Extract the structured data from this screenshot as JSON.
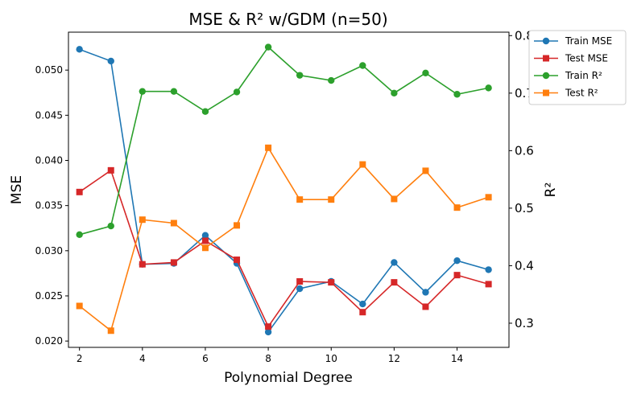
{
  "chart_data": {
    "type": "line",
    "title": "MSE & R² w/GDM (n=50)",
    "xlabel": "Polynomial Degree",
    "ylabel": "MSE",
    "ylabel_right": "R²",
    "x": [
      2,
      3,
      4,
      5,
      6,
      7,
      8,
      9,
      10,
      11,
      12,
      13,
      14,
      15
    ],
    "xlim": [
      1.65,
      15.65
    ],
    "ylim": [
      0.0193,
      0.0542
    ],
    "ylim_right": [
      0.258,
      0.806
    ],
    "x_ticks": [
      2,
      4,
      6,
      8,
      10,
      12,
      14
    ],
    "y_ticks": [
      0.02,
      0.025,
      0.03,
      0.035,
      0.04,
      0.045,
      0.05
    ],
    "y_tick_labels": [
      "0.020",
      "0.025",
      "0.030",
      "0.035",
      "0.040",
      "0.045",
      "0.050"
    ],
    "y_ticks_right": [
      0.3,
      0.4,
      0.5,
      0.6,
      0.7,
      0.8
    ],
    "y_tick_labels_right": [
      "0.3",
      "0.4",
      "0.5",
      "0.6",
      "0.7",
      "0.8"
    ],
    "grid": false,
    "legend_placement": "top-right, outside",
    "series": [
      {
        "name": "Train MSE",
        "axis": "left",
        "marker": "circle",
        "color": "#1f77b4",
        "values": [
          0.0523,
          0.051,
          0.0285,
          0.0286,
          0.0317,
          0.0286,
          0.021,
          0.0258,
          0.0266,
          0.0241,
          0.0287,
          0.0254,
          0.0289,
          0.0279
        ]
      },
      {
        "name": "Test MSE",
        "axis": "left",
        "marker": "square",
        "color": "#d62728",
        "values": [
          0.0365,
          0.0389,
          0.0285,
          0.0287,
          0.0311,
          0.029,
          0.0216,
          0.0266,
          0.0265,
          0.0232,
          0.0265,
          0.0238,
          0.0273,
          0.0263
        ]
      },
      {
        "name": "Train R²",
        "axis": "right",
        "marker": "circle",
        "color": "#2ca02c",
        "values": [
          0.454,
          0.469,
          0.703,
          0.703,
          0.668,
          0.702,
          0.78,
          0.731,
          0.722,
          0.748,
          0.7,
          0.735,
          0.698,
          0.709
        ]
      },
      {
        "name": "Test R²",
        "axis": "right",
        "marker": "square",
        "color": "#ff7f0e",
        "values": [
          0.33,
          0.287,
          0.48,
          0.474,
          0.431,
          0.47,
          0.605,
          0.515,
          0.515,
          0.576,
          0.516,
          0.565,
          0.501,
          0.519
        ]
      }
    ]
  }
}
